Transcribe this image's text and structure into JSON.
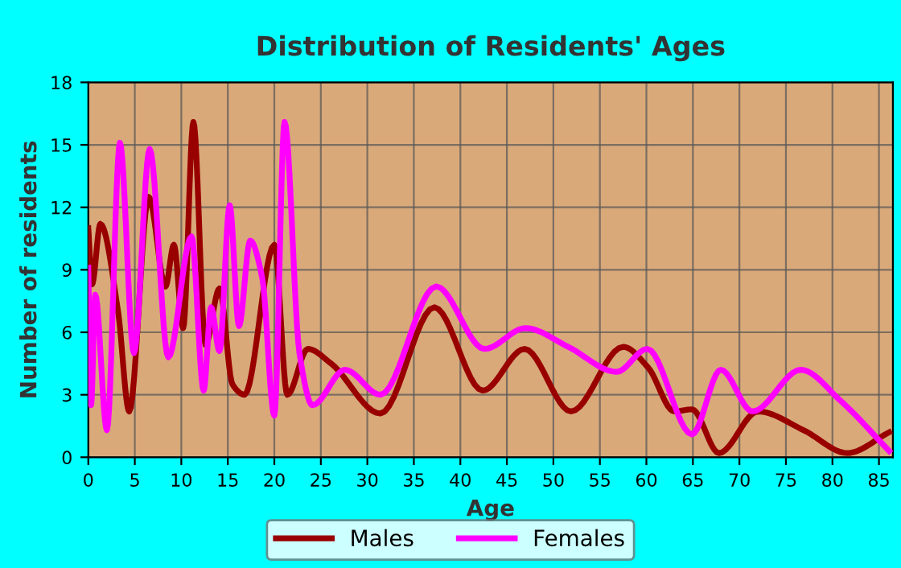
{
  "chart_data": {
    "type": "line",
    "title": "Distribution of Residents' Ages",
    "xlabel": "Age",
    "ylabel": "Number of residents",
    "xlim": [
      0,
      86.5
    ],
    "xticks": [
      0,
      5,
      10,
      15,
      20,
      25,
      30,
      35,
      40,
      45,
      50,
      55,
      60,
      65,
      70,
      75,
      80,
      85
    ],
    "ylim": [
      0,
      18
    ],
    "yticks": [
      0,
      3,
      6,
      9,
      12,
      15,
      18
    ],
    "grid": true,
    "legend": "bottom",
    "marker": "none",
    "line_style": "solid",
    "series": [
      {
        "name": "Males",
        "color": "#990000",
        "x": [
          0,
          0.4,
          1.3,
          3.2,
          4.4,
          6.5,
          8.3,
          9.2,
          10.2,
          11.3,
          12.6,
          14.1,
          15.5,
          16.8,
          20.0,
          21.4,
          23.6,
          26.1,
          31.4,
          37.2,
          42.4,
          46.9,
          51.9,
          57.5,
          60.2,
          63,
          64.9,
          67.8,
          72,
          76.9,
          81.6,
          86.1
        ],
        "values": [
          11,
          8.3,
          11.2,
          7.0,
          2.2,
          12.5,
          8.2,
          10.2,
          6.2,
          16.1,
          5.4,
          8.1,
          3.5,
          3.0,
          10.2,
          3.0,
          5.2,
          4.5,
          2.1,
          7.2,
          3.2,
          5.2,
          2.2,
          5.3,
          4.3,
          2.2,
          2.3,
          0.2,
          2.2,
          1.3,
          0.2,
          1.2
        ]
      },
      {
        "name": "Females",
        "color": "#ff00ff",
        "x": [
          0,
          0.3,
          0.75,
          2.0,
          3.4,
          4.9,
          6.6,
          8.6,
          11.1,
          12.4,
          13.2,
          14.1,
          15.2,
          16.2,
          17.4,
          18.7,
          20.0,
          21.1,
          22.7,
          24.1,
          27.6,
          31.4,
          37.4,
          42.6,
          47.0,
          51.6,
          56.8,
          60.1,
          64.9,
          68.0,
          71.4,
          76.6,
          80.9,
          86.1
        ],
        "values": [
          9.1,
          2.5,
          7.8,
          1.3,
          15.1,
          5.0,
          14.8,
          4.8,
          10.6,
          3.2,
          7.2,
          5.1,
          12.1,
          6.3,
          10.4,
          8.6,
          2.0,
          16.1,
          5.0,
          2.5,
          4.2,
          3.0,
          8.2,
          5.2,
          6.2,
          5.3,
          4.1,
          5.2,
          1.1,
          4.2,
          2.2,
          4.2,
          2.7,
          0.3
        ]
      }
    ]
  }
}
